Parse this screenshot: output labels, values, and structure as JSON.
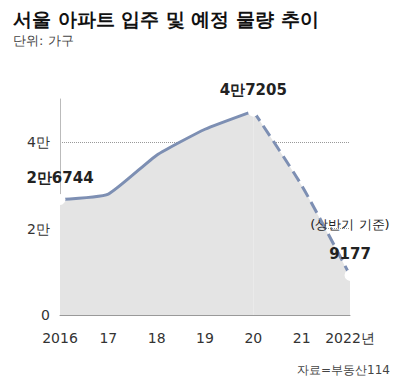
{
  "chart_data": {
    "type": "line",
    "title": "서울 아파트 입주 및 예정 물량 추이",
    "subtitle": "단위: 가구",
    "source": "자료=부동산114",
    "annotation": "(상반기 기준)",
    "categories": [
      "2016",
      "17",
      "18",
      "19",
      "20",
      "21",
      "2022년"
    ],
    "series": [
      {
        "values": [
          26744,
          28000,
          37000,
          43000,
          47205,
          null,
          null
        ],
        "value_labels": [
          "2만6744",
          null,
          null,
          null,
          "4만7205",
          null,
          null
        ],
        "color": "#7d8fb3",
        "line_style": "solid",
        "marker": "circle"
      },
      {
        "values": [
          null,
          null,
          null,
          null,
          47205,
          30000,
          9177
        ],
        "value_labels": [
          null,
          null,
          null,
          null,
          null,
          null,
          "9177"
        ],
        "color": "#7d8fb3",
        "line_style": "dashed",
        "marker": "circle"
      }
    ],
    "ylim": [
      0,
      50000
    ],
    "yticks": [
      0,
      {
        "value": 20000,
        "label": "2만"
      },
      {
        "value": 40000,
        "label": "4만"
      }
    ],
    "grid": true,
    "data_labels": true
  }
}
